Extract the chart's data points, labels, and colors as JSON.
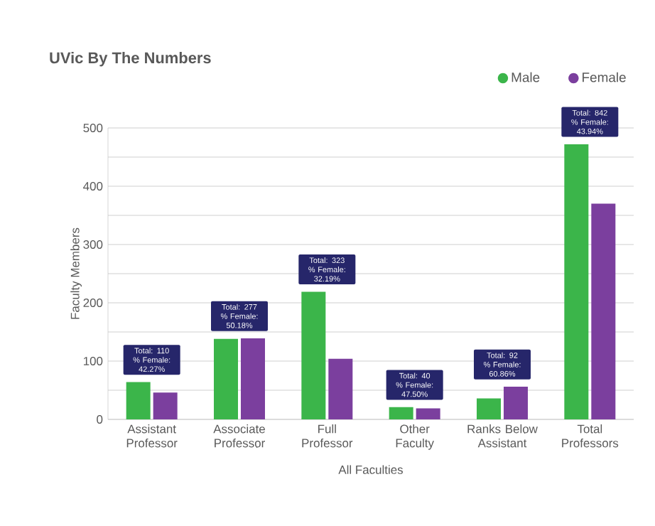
{
  "chart_data": {
    "type": "bar",
    "title": "UVic By The Numbers",
    "xlabel": "All Faculties",
    "ylabel": "Faculty Members",
    "categories": [
      "Assistant Professor",
      "Associate Professor",
      "Full Professor",
      "Other Faculty",
      "Ranks Below Assistant",
      "Total Professors"
    ],
    "series": [
      {
        "name": "Male",
        "color": "#3bb54a",
        "values": [
          64,
          138,
          219,
          21,
          36,
          472
        ]
      },
      {
        "name": "Female",
        "color": "#7b3f9e",
        "values": [
          46,
          139,
          104,
          19,
          56,
          370
        ]
      }
    ],
    "ylim": [
      0,
      500
    ],
    "yticks": [
      0,
      {
        "value": 50,
        "label": null
      },
      100,
      {
        "value": 150,
        "label": null
      },
      200,
      {
        "value": 250,
        "label": null
      },
      300,
      {
        "value": 350,
        "label": null
      },
      400,
      {
        "value": 450,
        "label": null
      },
      500
    ],
    "grid": "y",
    "legend": "top right",
    "marker": "circle",
    "annotations": [
      {
        "text": "Total: 110 % Female: 42.27%",
        "x": "Assistant Professor",
        "y": 64
      },
      {
        "text": "Total: 277 % Female: 50.18%",
        "x": "Associate Professor",
        "y": 139
      },
      {
        "text": "Total: 323 % Female: 32.19%",
        "x": "Full Professor",
        "y": 219
      },
      {
        "text": "Total: 40 % Female: 47.50%",
        "x": "Other Faculty",
        "y": 21
      },
      {
        "text": "Total: 92 % Female: 60.86%",
        "x": "Ranks Below Assistant",
        "y": 56
      },
      {
        "text": "Total: 842 % Female: 43.94%",
        "x": "Total Professors",
        "y": 472
      }
    ]
  }
}
